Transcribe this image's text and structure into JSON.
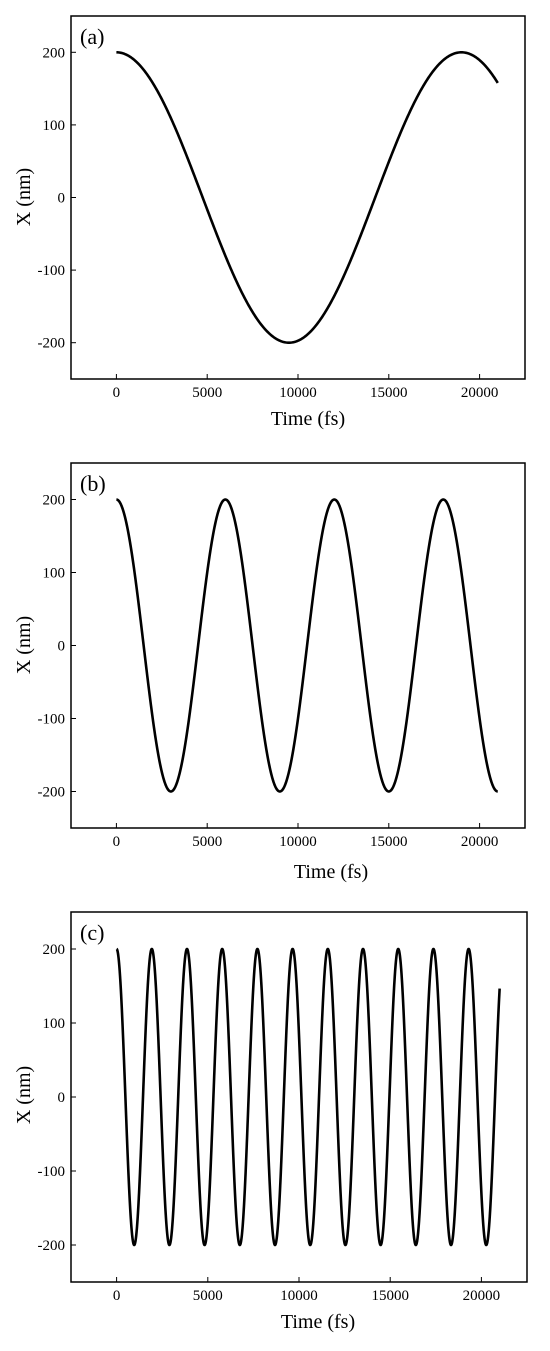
{
  "figure": {
    "background": "#ffffff",
    "line_color": "#000000"
  },
  "chart_data": [
    {
      "type": "line",
      "panel_label": "(a)",
      "xlabel": "Time (fs)",
      "ylabel": "X (nm)",
      "xlim": [
        -2500,
        22500
      ],
      "ylim": [
        -250,
        250
      ],
      "xticks": [
        0,
        5000,
        10000,
        15000,
        20000
      ],
      "yticks": [
        200,
        100,
        0,
        -100,
        -200
      ],
      "x_range": [
        0,
        21000
      ],
      "sampling_step_fs": 50,
      "series": [
        {
          "function": "200*cos(2*pi*t/19000)",
          "amplitude_nm": 200,
          "period_fs": 19000,
          "color": "#000000"
        }
      ]
    },
    {
      "type": "line",
      "panel_label": "(b)",
      "xlabel": "Time (fs)",
      "ylabel": "X (nm)",
      "xlim": [
        -2500,
        22500
      ],
      "ylim": [
        -250,
        250
      ],
      "xticks": [
        0,
        5000,
        10000,
        15000,
        20000
      ],
      "yticks": [
        200,
        100,
        0,
        -100,
        -200
      ],
      "x_range": [
        0,
        21000
      ],
      "sampling_step_fs": 25,
      "series": [
        {
          "function": "200*cos(2*pi*t/6000)",
          "amplitude_nm": 200,
          "period_fs": 6000,
          "color": "#000000"
        }
      ]
    },
    {
      "type": "line",
      "panel_label": "(c)",
      "xlabel": "Time (fs)",
      "ylabel": "X (nm)",
      "xlim": [
        -2500,
        22500
      ],
      "ylim": [
        -250,
        250
      ],
      "xticks": [
        0,
        5000,
        10000,
        15000,
        20000
      ],
      "yticks": [
        200,
        100,
        0,
        -100,
        -200
      ],
      "x_range": [
        0,
        21000
      ],
      "sampling_step_fs": 10,
      "series": [
        {
          "function": "200*cos(2*pi*t/1930)",
          "amplitude_nm": 200,
          "period_fs": 1930,
          "color": "#000000"
        }
      ]
    }
  ]
}
